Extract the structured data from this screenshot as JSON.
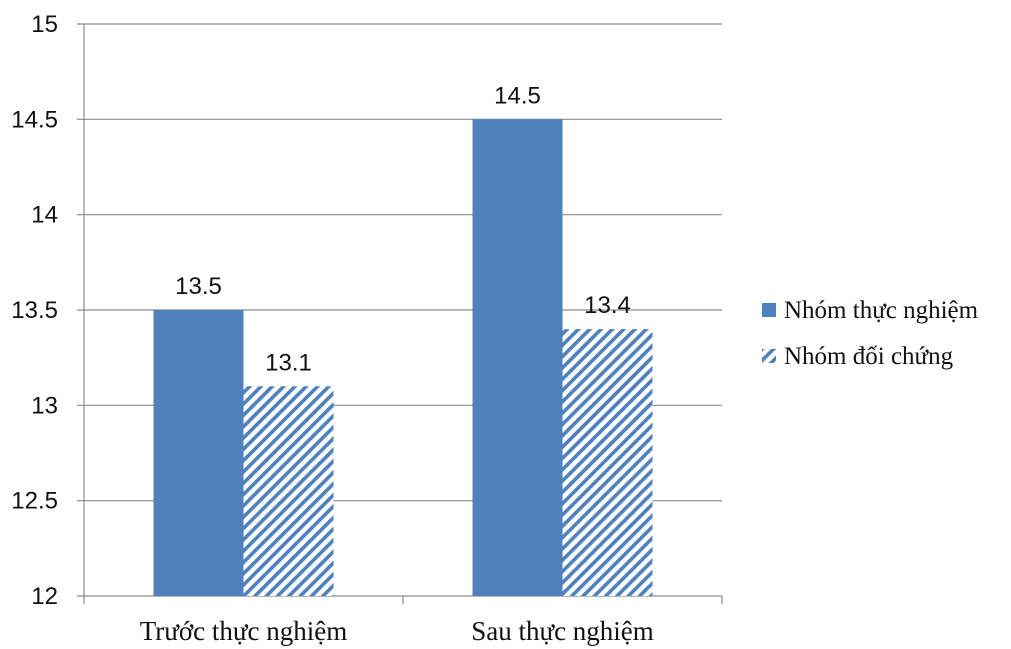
{
  "chart_data": {
    "type": "bar",
    "categories": [
      "Trước thực nghiệm",
      "Sau thực nghiệm"
    ],
    "series": [
      {
        "name": "Nhóm thực nghiệm",
        "values": [
          13.5,
          14.5
        ],
        "color": "#4f81bd",
        "fill": "solid"
      },
      {
        "name": "Nhóm đối chứng",
        "values": [
          13.1,
          13.4
        ],
        "color": "#4f81bd",
        "fill": "diagonal-stripes"
      }
    ],
    "ylim": [
      12,
      15
    ],
    "yticks": [
      "12",
      "12.5",
      "13",
      "13.5",
      "14",
      "14.5",
      "15"
    ],
    "data_labels": [
      [
        "13.5",
        "14.5"
      ],
      [
        "13.1",
        "13.4"
      ]
    ],
    "grid": true,
    "legend_position": "right"
  }
}
